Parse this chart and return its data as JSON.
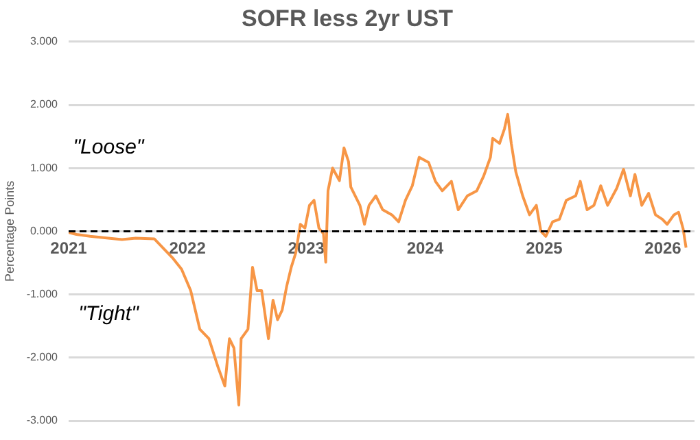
{
  "chart_data": {
    "type": "line",
    "title": "SOFR less 2yr UST",
    "ylabel": "Percentage Points",
    "x": [
      "2021-01-01",
      "2021-01-25",
      "2021-03-08",
      "2021-05-03",
      "2021-06-14",
      "2021-07-26",
      "2021-09-21",
      "2021-11-16",
      "2021-12-14",
      "2022-01-11",
      "2022-02-08",
      "2022-03-08",
      "2022-04-05",
      "2022-04-26",
      "2022-05-10",
      "2022-05-24",
      "2022-06-08",
      "2022-06-15",
      "2022-07-06",
      "2022-07-20",
      "2022-08-03",
      "2022-08-17",
      "2022-09-07",
      "2022-09-21",
      "2022-10-05",
      "2022-10-19",
      "2022-11-02",
      "2022-11-16",
      "2022-11-30",
      "2022-12-14",
      "2022-12-28",
      "2023-01-11",
      "2023-01-25",
      "2023-02-09",
      "2023-02-23",
      "2023-03-02",
      "2023-03-09",
      "2023-03-23",
      "2023-04-13",
      "2023-04-27",
      "2023-05-11",
      "2023-05-18",
      "2023-06-15",
      "2023-06-29",
      "2023-07-13",
      "2023-08-03",
      "2023-08-24",
      "2023-09-21",
      "2023-10-12",
      "2023-11-02",
      "2023-11-23",
      "2023-12-14",
      "2024-01-12",
      "2024-02-02",
      "2024-02-23",
      "2024-03-22",
      "2024-04-12",
      "2024-05-10",
      "2024-06-08",
      "2024-06-29",
      "2024-07-20",
      "2024-07-27",
      "2024-08-17",
      "2024-09-01",
      "2024-09-11",
      "2024-09-22",
      "2024-10-06",
      "2024-10-27",
      "2024-11-17",
      "2024-12-08",
      "2024-12-22",
      "2025-01-06",
      "2025-01-27",
      "2025-02-17",
      "2025-03-10",
      "2025-04-08",
      "2025-04-22",
      "2025-05-13",
      "2025-06-03",
      "2025-06-24",
      "2025-07-15",
      "2025-08-12",
      "2025-09-02",
      "2025-09-23",
      "2025-10-07",
      "2025-10-28",
      "2025-11-18",
      "2025-12-09",
      "2025-12-30",
      "2026-01-14",
      "2026-02-04",
      "2026-02-18",
      "2026-03-04",
      "2026-03-13"
    ],
    "series": [
      {
        "color": "#f79646",
        "values": [
          -0.02,
          -0.05,
          -0.08,
          -0.11,
          -0.13,
          -0.11,
          -0.12,
          -0.42,
          -0.6,
          -0.94,
          -1.55,
          -1.7,
          -2.15,
          -2.45,
          -1.7,
          -1.85,
          -2.75,
          -1.7,
          -1.55,
          -0.57,
          -0.94,
          -0.94,
          -1.7,
          -1.09,
          -1.4,
          -1.25,
          -0.87,
          -0.57,
          -0.34,
          0.11,
          0.05,
          0.41,
          0.49,
          0.05,
          -0.04,
          -0.49,
          0.64,
          1.0,
          0.8,
          1.32,
          1.1,
          0.7,
          0.41,
          0.11,
          0.41,
          0.56,
          0.34,
          0.26,
          0.15,
          0.49,
          0.72,
          1.17,
          1.09,
          0.79,
          0.64,
          0.79,
          0.34,
          0.56,
          0.64,
          0.87,
          1.17,
          1.47,
          1.39,
          1.62,
          1.85,
          1.39,
          0.94,
          0.56,
          0.26,
          0.41,
          0.0,
          -0.08,
          0.15,
          0.19,
          0.49,
          0.56,
          0.79,
          0.34,
          0.41,
          0.72,
          0.41,
          0.68,
          0.98,
          0.56,
          0.9,
          0.41,
          0.6,
          0.26,
          0.19,
          0.11,
          0.26,
          0.3,
          0.04,
          -0.26
        ]
      }
    ],
    "xlim": [
      "2021-01-01",
      "2026-04-08"
    ],
    "xticks": [
      {
        "value": "2021-01-01",
        "label": "2021"
      },
      {
        "value": "2022-01-01",
        "label": "2022"
      },
      {
        "value": "2023-01-01",
        "label": "2023"
      },
      {
        "value": "2024-01-01",
        "label": "2024"
      },
      {
        "value": "2025-01-01",
        "label": "2025"
      },
      {
        "value": "2026-01-01",
        "label": "2026"
      }
    ],
    "ylim": [
      -3,
      3
    ],
    "yticks": [
      {
        "value": -3,
        "label": "-3.000"
      },
      {
        "value": -2,
        "label": "-2.000"
      },
      {
        "value": -1,
        "label": "-1.000"
      },
      {
        "value": 0,
        "label": "0.000"
      },
      {
        "value": 1,
        "label": "1.000"
      },
      {
        "value": 2,
        "label": "2.000"
      },
      {
        "value": 3,
        "label": "3.000"
      }
    ],
    "grid": "y",
    "legend": false,
    "marker": "none",
    "line_style": "solid",
    "ref_lines": [
      {
        "axis": "y",
        "value": 0,
        "color": "#000000",
        "line_style": "dashed"
      }
    ],
    "annotations": [
      "\"Loose\"",
      "\"Tight\""
    ]
  }
}
